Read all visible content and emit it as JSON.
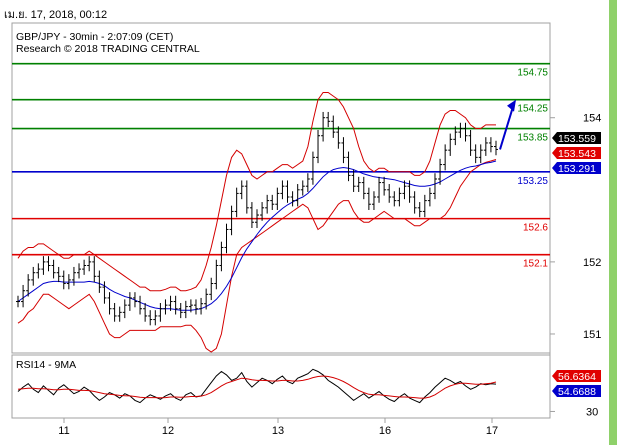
{
  "header": {
    "timestamp": "เม.ย. 17, 2018, 00:12",
    "instrument": "GBP/JPY - 30min - 2:07:09 (CET)",
    "copyright": "Research © 2018 TRADING CENTRAL"
  },
  "colors": {
    "resistance": "#008000",
    "support": "#e00000",
    "pivot": "#0000cc",
    "price": "#000000",
    "bollinger": "#d40000",
    "moving_average": "#0000cc",
    "rsi": "#000000",
    "rsi_ma": "#d40000",
    "border": "#a0a0a0",
    "accent_bar": "#8fd16a"
  },
  "chart_data": [
    {
      "type": "candlestick",
      "title": "GBP/JPY - 30min - 2:07:09 (CET)",
      "x_ticks": [
        "11",
        "12",
        "13",
        "16",
        "17"
      ],
      "y_ticks": [
        151,
        152,
        154
      ],
      "ylim": [
        150.75,
        155.3
      ],
      "grid": false,
      "levels": [
        {
          "label": "154.75",
          "value": 154.75,
          "kind": "resistance"
        },
        {
          "label": "154.25",
          "value": 154.25,
          "kind": "resistance"
        },
        {
          "label": "153.85",
          "value": 153.85,
          "kind": "resistance"
        },
        {
          "label": "153.25",
          "value": 153.25,
          "kind": "pivot"
        },
        {
          "label": "152.6",
          "value": 152.6,
          "kind": "support"
        },
        {
          "label": "152.1",
          "value": 152.1,
          "kind": "support"
        }
      ],
      "price_tags": [
        {
          "label": "153.559",
          "value": 153.559,
          "color": "#000000"
        },
        {
          "label": "153.543",
          "value": 153.543,
          "color": "#e00000"
        },
        {
          "label": "153.291",
          "value": 153.291,
          "color": "#0000cc"
        }
      ],
      "close": [
        151.45,
        151.6,
        151.75,
        151.85,
        151.9,
        152.0,
        151.95,
        151.85,
        151.8,
        151.7,
        151.75,
        151.85,
        151.9,
        151.95,
        152.0,
        151.8,
        151.65,
        151.5,
        151.35,
        151.25,
        151.3,
        151.4,
        151.5,
        151.45,
        151.35,
        151.25,
        151.2,
        151.25,
        151.35,
        151.4,
        151.45,
        151.35,
        151.3,
        151.38,
        151.4,
        151.35,
        151.42,
        151.55,
        151.7,
        151.95,
        152.2,
        152.45,
        152.7,
        152.95,
        153.05,
        152.75,
        152.55,
        152.65,
        152.75,
        152.85,
        152.8,
        152.95,
        153.05,
        152.9,
        152.85,
        153.0,
        153.05,
        153.15,
        153.45,
        153.75,
        154.0,
        153.95,
        153.8,
        153.65,
        153.45,
        153.2,
        153.05,
        153.1,
        152.95,
        152.8,
        152.9,
        153.1,
        153.0,
        152.9,
        152.85,
        152.95,
        153.05,
        152.9,
        152.75,
        152.7,
        152.85,
        152.95,
        153.15,
        153.35,
        153.55,
        153.7,
        153.8,
        153.85,
        153.75,
        153.55,
        153.45,
        153.55,
        153.65,
        153.6,
        153.56
      ],
      "bollinger_upper": [
        152.05,
        152.15,
        152.2,
        152.2,
        152.25,
        152.25,
        152.2,
        152.15,
        152.1,
        152.05,
        152.05,
        152.1,
        152.1,
        152.1,
        152.15,
        152.1,
        152.05,
        152.0,
        151.95,
        151.9,
        151.85,
        151.8,
        151.75,
        151.7,
        151.65,
        151.65,
        151.6,
        151.6,
        151.6,
        151.62,
        151.65,
        151.65,
        151.6,
        151.6,
        151.62,
        151.65,
        151.75,
        151.95,
        152.2,
        152.5,
        152.85,
        153.2,
        153.45,
        153.55,
        153.5,
        153.35,
        153.2,
        153.15,
        153.2,
        153.25,
        153.25,
        153.3,
        153.35,
        153.35,
        153.3,
        153.35,
        153.4,
        153.6,
        153.95,
        154.25,
        154.35,
        154.35,
        154.3,
        154.25,
        154.15,
        154.0,
        153.85,
        153.6,
        153.4,
        153.3,
        153.25,
        153.3,
        153.3,
        153.25,
        153.25,
        153.25,
        153.25,
        153.25,
        153.2,
        153.2,
        153.25,
        153.4,
        153.65,
        153.9,
        154.05,
        154.1,
        154.1,
        154.05,
        154.0,
        153.9,
        153.85,
        153.85,
        153.9,
        153.9,
        153.9
      ],
      "bollinger_lower": [
        151.15,
        151.2,
        151.3,
        151.35,
        151.45,
        151.55,
        151.55,
        151.5,
        151.45,
        151.4,
        151.35,
        151.4,
        151.45,
        151.5,
        151.55,
        151.45,
        151.3,
        151.15,
        151.0,
        150.95,
        150.95,
        151.0,
        151.05,
        151.05,
        151.05,
        151.05,
        151.05,
        151.05,
        151.1,
        151.1,
        151.1,
        151.1,
        151.1,
        151.12,
        151.12,
        151.05,
        150.95,
        150.8,
        150.75,
        150.8,
        151.0,
        151.4,
        151.8,
        152.1,
        152.2,
        152.25,
        152.3,
        152.35,
        152.4,
        152.45,
        152.5,
        152.55,
        152.6,
        152.65,
        152.7,
        152.75,
        152.8,
        152.75,
        152.6,
        152.45,
        152.5,
        152.6,
        152.7,
        152.8,
        152.85,
        152.85,
        152.7,
        152.6,
        152.55,
        152.55,
        152.6,
        152.65,
        152.7,
        152.65,
        152.6,
        152.6,
        152.6,
        152.55,
        152.5,
        152.5,
        152.55,
        152.6,
        152.6,
        152.6,
        152.65,
        152.75,
        152.9,
        153.05,
        153.15,
        153.25,
        153.3,
        153.35,
        153.38,
        153.4,
        153.42
      ],
      "moving_average": [
        151.45,
        151.5,
        151.55,
        151.6,
        151.65,
        151.7,
        151.72,
        151.73,
        151.73,
        151.72,
        151.72,
        151.72,
        151.72,
        151.72,
        151.73,
        151.72,
        151.7,
        151.67,
        151.62,
        151.58,
        151.55,
        151.52,
        151.5,
        151.47,
        151.44,
        151.41,
        151.38,
        151.36,
        151.35,
        151.35,
        151.35,
        151.34,
        151.33,
        151.33,
        151.33,
        151.34,
        151.35,
        151.38,
        151.42,
        151.48,
        151.56,
        151.66,
        151.78,
        151.92,
        152.06,
        152.18,
        152.28,
        152.38,
        152.47,
        152.55,
        152.62,
        152.68,
        152.74,
        152.79,
        152.83,
        152.87,
        152.9,
        152.95,
        153.02,
        153.1,
        153.18,
        153.24,
        153.28,
        153.3,
        153.31,
        153.3,
        153.28,
        153.25,
        153.22,
        153.2,
        153.18,
        153.17,
        153.16,
        153.15,
        153.14,
        153.12,
        153.1,
        153.08,
        153.06,
        153.05,
        153.05,
        153.06,
        153.08,
        153.11,
        153.15,
        153.19,
        153.23,
        153.27,
        153.3,
        153.32,
        153.33,
        153.35,
        153.37,
        153.38,
        153.4
      ],
      "forecast_arrow": {
        "from": 153.56,
        "to": 154.25
      }
    },
    {
      "type": "line",
      "title": "RSI14 - 9MA",
      "y_ticks": [
        30
      ],
      "ylim": [
        25,
        80
      ],
      "tags": [
        {
          "label": "56.6364",
          "value": 56.6364,
          "color": "#e00000"
        },
        {
          "label": "54.6688",
          "value": 54.6688,
          "color": "#0000cc"
        }
      ],
      "rsi": [
        48,
        52,
        55,
        50,
        47,
        53,
        49,
        45,
        51,
        54,
        50,
        46,
        48,
        52,
        49,
        44,
        40,
        43,
        47,
        45,
        42,
        46,
        44,
        40,
        38,
        42,
        45,
        43,
        41,
        44,
        46,
        42,
        40,
        45,
        47,
        43,
        44,
        50,
        56,
        62,
        66,
        63,
        58,
        60,
        65,
        57,
        52,
        56,
        60,
        58,
        55,
        59,
        62,
        57,
        55,
        60,
        62,
        64,
        68,
        66,
        63,
        58,
        55,
        52,
        48,
        44,
        40,
        43,
        46,
        42,
        45,
        48,
        44,
        41,
        39,
        43,
        46,
        42,
        40,
        38,
        43,
        47,
        52,
        56,
        60,
        58,
        55,
        57,
        53,
        50,
        52,
        55,
        54,
        55,
        54.7
      ],
      "rsi_ma": [
        50,
        50.5,
        51,
        51,
        50.5,
        50.5,
        50.2,
        49.5,
        49.5,
        50,
        50,
        49.5,
        49,
        49,
        48.8,
        48,
        47,
        46,
        45.5,
        45,
        44.5,
        44.2,
        44,
        43.5,
        42.8,
        42.5,
        42.5,
        42.5,
        42.3,
        42.5,
        43,
        43,
        42.8,
        43,
        43.5,
        43.5,
        43.8,
        45,
        47,
        50,
        53,
        55.5,
        57,
        58.5,
        60,
        59.5,
        58.5,
        58,
        58,
        57.8,
        57.5,
        57.5,
        58,
        58,
        57.5,
        57.5,
        58,
        59,
        60.5,
        61.5,
        62,
        61.5,
        60.5,
        59,
        57,
        54.5,
        51.5,
        49,
        47,
        45.5,
        45,
        45,
        44.5,
        44,
        43.5,
        43,
        43,
        42.8,
        42.5,
        42,
        42,
        43,
        45,
        48,
        51,
        53,
        54.5,
        55.5,
        55.5,
        55,
        54.5,
        54.5,
        55,
        55.5,
        56.6
      ]
    }
  ]
}
